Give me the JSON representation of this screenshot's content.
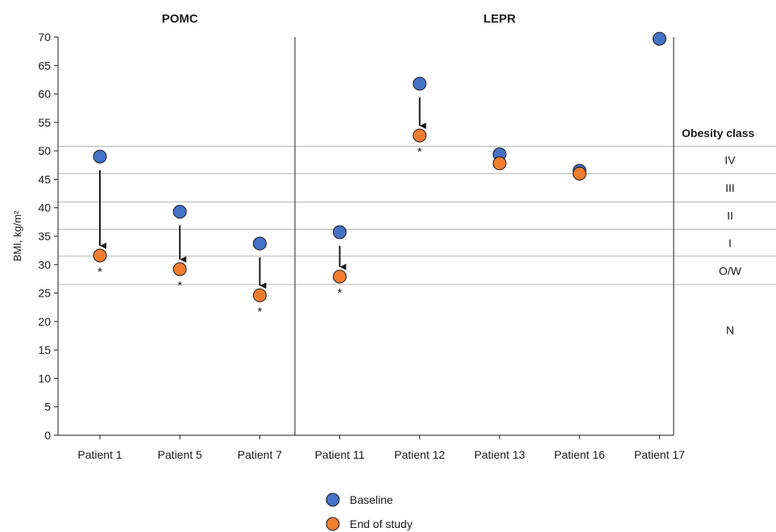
{
  "chart_data": {
    "type": "scatter",
    "ylabel": "BMI, kg/m²",
    "ylim": [
      0,
      70
    ],
    "y_ticks": [
      0,
      5,
      10,
      15,
      20,
      25,
      30,
      35,
      40,
      45,
      50,
      55,
      60,
      65,
      70
    ],
    "categories": [
      "Patient 1",
      "Patient 5",
      "Patient 7",
      "Patient 11",
      "Patient 12",
      "Patient 13",
      "Patient 16",
      "Patient 17"
    ],
    "groups": [
      {
        "label": "POMC",
        "categories": [
          "Patient 1",
          "Patient 5",
          "Patient 7"
        ]
      },
      {
        "label": "LEPR",
        "categories": [
          "Patient 11",
          "Patient 12",
          "Patient 13",
          "Patient 16",
          "Patient 17"
        ]
      }
    ],
    "series": [
      {
        "name": "Baseline",
        "color": "#4472c4",
        "values": [
          49.0,
          39.3,
          33.7,
          35.7,
          61.8,
          49.4,
          46.5,
          69.7
        ]
      },
      {
        "name": "End of study",
        "color": "#ed7d31",
        "values": [
          31.6,
          29.2,
          24.6,
          27.9,
          52.7,
          47.8,
          46.0,
          null
        ]
      }
    ],
    "arrows": [
      "Patient 1",
      "Patient 5",
      "Patient 7",
      "Patient 11",
      "Patient 12"
    ],
    "significance_marker": "*",
    "significant": [
      "Patient 1",
      "Patient 5",
      "Patient 7",
      "Patient 11",
      "Patient 12"
    ],
    "obesity_class": {
      "title": "Obesity class",
      "thresholds": [
        26.5,
        31.5,
        36.2,
        41.0,
        46.0,
        50.8
      ],
      "bands": [
        {
          "label": "N",
          "y": 18.5
        },
        {
          "label": "O/W",
          "y": 28.9
        },
        {
          "label": "I",
          "y": 33.8
        },
        {
          "label": "II",
          "y": 38.6
        },
        {
          "label": "III",
          "y": 43.5
        },
        {
          "label": "IV",
          "y": 48.4
        }
      ]
    },
    "grid": false,
    "legend": "bottom-center"
  }
}
